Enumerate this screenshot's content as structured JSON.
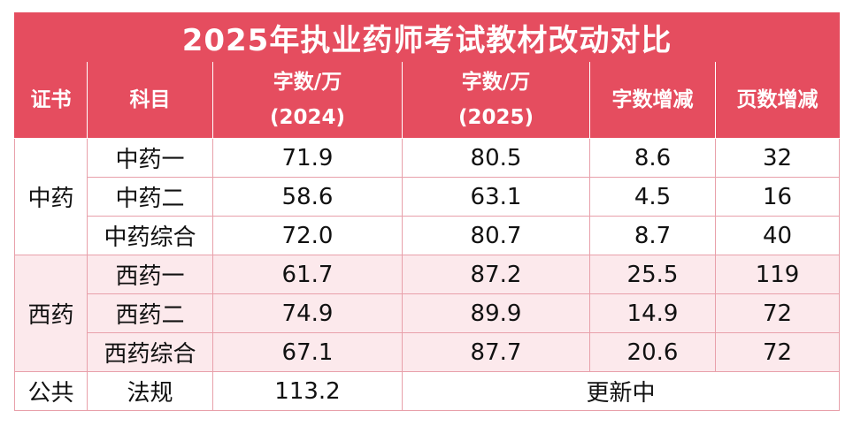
{
  "title": "2025年执业药师考试教材改动对比",
  "headers": {
    "cert": "证书",
    "subject": "科目",
    "words2024_line1": "字数/万",
    "words2024_line2": "(2024)",
    "words2025_line1": "字数/万",
    "words2025_line2": "(2025)",
    "word_change": "字数增减",
    "page_change": "页数增减"
  },
  "groups": {
    "cn": "中药",
    "west": "西药",
    "pub": "公共"
  },
  "rows": [
    {
      "subject": "中药一",
      "w2024": "71.9",
      "w2025": "80.5",
      "dw": "8.6",
      "dp": "32"
    },
    {
      "subject": "中药二",
      "w2024": "58.6",
      "w2025": "63.1",
      "dw": "4.5",
      "dp": "16"
    },
    {
      "subject": "中药综合",
      "w2024": "72.0",
      "w2025": "80.7",
      "dw": "8.7",
      "dp": "40"
    },
    {
      "subject": "西药一",
      "w2024": "61.7",
      "w2025": "87.2",
      "dw": "25.5",
      "dp": "119"
    },
    {
      "subject": "西药二",
      "w2024": "74.9",
      "w2025": "89.9",
      "dw": "14.9",
      "dp": "72"
    },
    {
      "subject": "西药综合",
      "w2024": "67.1",
      "w2025": "87.7",
      "dw": "20.6",
      "dp": "72"
    }
  ],
  "public_row": {
    "subject": "法规",
    "w2024": "113.2",
    "status": "更新中"
  },
  "colors": {
    "header_bg": "#e54d5f",
    "alt_row_bg": "#fce9ec",
    "border": "#e8a0aa"
  }
}
